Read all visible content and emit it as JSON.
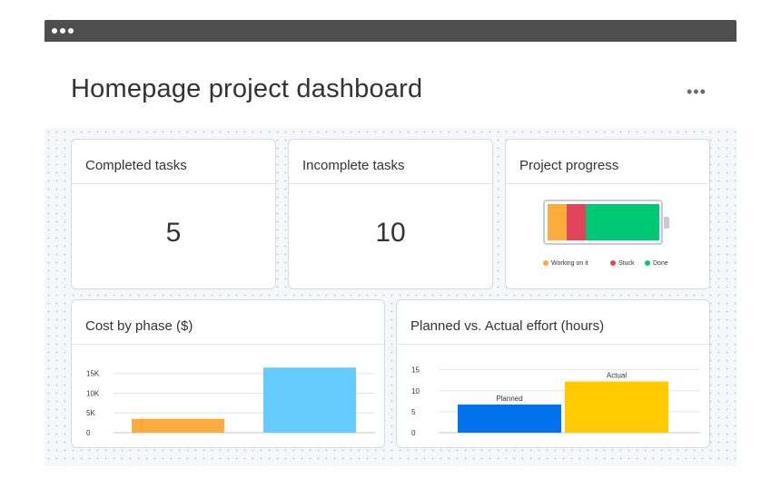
{
  "page": {
    "title": "Homepage project dashboard",
    "more_label": "•••"
  },
  "cards": {
    "completed": {
      "title": "Completed tasks",
      "value": "5"
    },
    "incomplete": {
      "title": "Incomplete tasks",
      "value": "10"
    },
    "progress": {
      "title": "Project progress",
      "segments": [
        {
          "label": "Working on it",
          "color": "#fdab3d",
          "fraction": 0.17
        },
        {
          "label": "Stuck",
          "color": "#e2445c",
          "fraction": 0.17
        },
        {
          "label": "Done",
          "color": "#00c875",
          "fraction": 0.66
        }
      ]
    },
    "cost": {
      "title": "Cost by phase ($)"
    },
    "effort": {
      "title": "Planned vs. Actual effort (hours)"
    }
  },
  "chart_data": [
    {
      "type": "bar",
      "title": "Cost by phase ($)",
      "categories": [
        "",
        ""
      ],
      "values": [
        3500,
        16500
      ],
      "colors": [
        "#fdab3d",
        "#66ccff"
      ],
      "yticks": [
        "0",
        "5K",
        "10K",
        "15K"
      ],
      "ylim": [
        0,
        17000
      ],
      "grid": true
    },
    {
      "type": "bar",
      "title": "Planned vs. Actual effort (hours)",
      "categories": [
        "Planned",
        "Actual"
      ],
      "values": [
        6.7,
        12.2
      ],
      "colors": [
        "#0073ea",
        "#ffcb00"
      ],
      "yticks": [
        "0",
        "5",
        "10",
        "15"
      ],
      "ylim": [
        0,
        16
      ],
      "grid": true
    }
  ]
}
